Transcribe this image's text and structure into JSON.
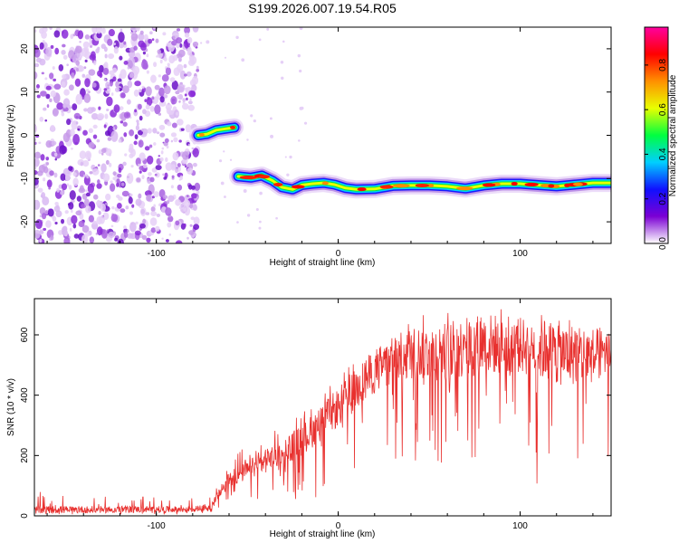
{
  "title": "S199.2026.007.19.54.R05",
  "chart_data": [
    {
      "type": "heatmap",
      "name": "spectrogram",
      "xlabel": "Height of straight line (km)",
      "ylabel": "Frequency (Hz)",
      "xlim": [
        -167,
        150
      ],
      "ylim": [
        -25,
        25
      ],
      "xticks": [
        -100,
        0,
        100
      ],
      "yticks": [
        -20,
        -10,
        0,
        10,
        20
      ],
      "colorbar": {
        "label": "Normalized spectral amplitude",
        "range": [
          0,
          0.97
        ],
        "ticks": [
          "0.0",
          "0.2",
          "0.4",
          "0.6",
          "0.8"
        ],
        "tick_values": [
          0.0,
          0.2,
          0.4,
          0.6,
          0.8
        ],
        "stops": [
          "#ffffff",
          "#7b00d4",
          "#1010ff",
          "#00cfff",
          "#00ff40",
          "#e8ff00",
          "#ff9000",
          "#ff0000",
          "#ff00a0"
        ]
      },
      "noise_region_x": [
        -167,
        -77
      ],
      "trace": [
        {
          "x": -77,
          "y": 0.0
        },
        {
          "x": -72,
          "y": 0.3
        },
        {
          "x": -67,
          "y": 1.2
        },
        {
          "x": -62,
          "y": 1.5
        },
        {
          "x": -57,
          "y": 1.8
        },
        {
          "x": -55,
          "y": -9.5
        },
        {
          "x": -48,
          "y": -9.8
        },
        {
          "x": -42,
          "y": -9.3
        },
        {
          "x": -36,
          "y": -10.5
        },
        {
          "x": -31,
          "y": -12.0
        },
        {
          "x": -25,
          "y": -12.5
        },
        {
          "x": -20,
          "y": -11.5
        },
        {
          "x": -14,
          "y": -11.2
        },
        {
          "x": -8,
          "y": -11.0
        },
        {
          "x": -2,
          "y": -11.4
        },
        {
          "x": 4,
          "y": -12.2
        },
        {
          "x": 10,
          "y": -12.5
        },
        {
          "x": 20,
          "y": -12.4
        },
        {
          "x": 30,
          "y": -11.7
        },
        {
          "x": 40,
          "y": -11.6
        },
        {
          "x": 50,
          "y": -11.6
        },
        {
          "x": 60,
          "y": -11.8
        },
        {
          "x": 70,
          "y": -12.3
        },
        {
          "x": 80,
          "y": -11.6
        },
        {
          "x": 90,
          "y": -11.2
        },
        {
          "x": 100,
          "y": -11.2
        },
        {
          "x": 110,
          "y": -11.5
        },
        {
          "x": 120,
          "y": -11.8
        },
        {
          "x": 130,
          "y": -11.4
        },
        {
          "x": 140,
          "y": -11.0
        },
        {
          "x": 150,
          "y": -11.0
        }
      ]
    },
    {
      "type": "line",
      "name": "snr",
      "xlabel": "Height of straight line (km)",
      "ylabel": "SNR (10 * v/v)",
      "xlim": [
        -167,
        150
      ],
      "ylim": [
        0,
        720
      ],
      "xticks": [
        -100,
        0,
        100
      ],
      "yticks": [
        0,
        200,
        400,
        600
      ],
      "color": "#e8302e",
      "envelope": [
        {
          "x": -167,
          "mean": 20,
          "low": 5,
          "high": 80
        },
        {
          "x": -80,
          "mean": 22,
          "low": 5,
          "high": 60
        },
        {
          "x": -70,
          "mean": 30,
          "low": 10,
          "high": 70
        },
        {
          "x": -60,
          "mean": 120,
          "low": 40,
          "high": 190
        },
        {
          "x": -40,
          "mean": 180,
          "low": 60,
          "high": 280
        },
        {
          "x": -20,
          "mean": 250,
          "low": 40,
          "high": 340
        },
        {
          "x": 0,
          "mean": 360,
          "low": 90,
          "high": 460
        },
        {
          "x": 20,
          "mean": 480,
          "low": 150,
          "high": 580
        },
        {
          "x": 40,
          "mean": 540,
          "low": 150,
          "high": 660
        },
        {
          "x": 60,
          "mean": 545,
          "low": 120,
          "high": 680
        },
        {
          "x": 80,
          "mean": 570,
          "low": 100,
          "high": 700
        },
        {
          "x": 100,
          "mean": 565,
          "low": 150,
          "high": 680
        },
        {
          "x": 120,
          "mean": 540,
          "low": 40,
          "high": 660
        },
        {
          "x": 140,
          "mean": 530,
          "low": 120,
          "high": 660
        },
        {
          "x": 150,
          "mean": 540,
          "low": 200,
          "high": 650
        }
      ]
    }
  ]
}
